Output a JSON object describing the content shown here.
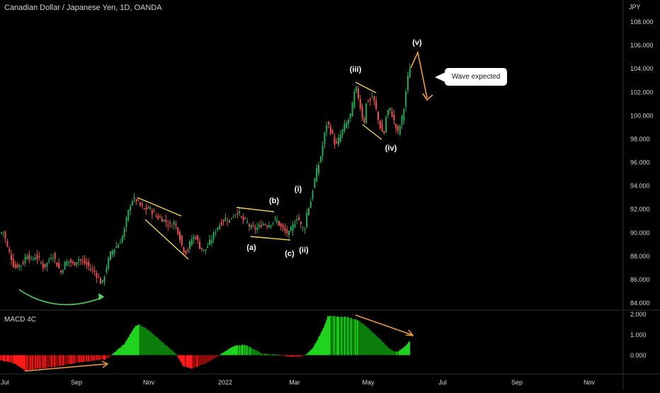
{
  "header": {
    "title": "Canadian Dollar / Japanese Yen, 1D, OANDA"
  },
  "price_axis": {
    "unit": "JPY"
  },
  "indicator": {
    "name": "MACD 4C"
  },
  "callout": {
    "text": "Wave expected"
  },
  "colors": {
    "up": "#22ab5c",
    "down": "#ef5350",
    "annotation_orange": "#f39c3c",
    "channel_yellow": "#f5d547",
    "curve_green": "#4cd964",
    "hist_bright_green": "#1fd31f",
    "hist_dark_green": "#0a7d0a",
    "hist_bright_red": "#ff1a1a",
    "hist_dark_red": "#8a0b0b",
    "background": "#000000",
    "text": "#d1d4dc"
  },
  "chart_data": [
    {
      "type": "candlestick",
      "title": "Canadian Dollar / Japanese Yen, 1D, OANDA",
      "ylabel": "JPY",
      "ylim": [
        83.5,
        109.5
      ],
      "grid": false,
      "x_ticks": [
        "Jul",
        "Sep",
        "Nov",
        "2022",
        "Mar",
        "May",
        "Jul",
        "Sep",
        "Nov"
      ],
      "y_ticks": [
        "84.000",
        "86.000",
        "88.000",
        "90.000",
        "92.000",
        "94.000",
        "96.000",
        "98.000",
        "100.000",
        "102.000",
        "104.000",
        "106.000",
        "108.000"
      ],
      "price_path": [
        [
          0,
          89.9
        ],
        [
          5,
          90.1
        ],
        [
          10,
          88.8
        ],
        [
          15,
          88.0
        ],
        [
          20,
          87.0
        ],
        [
          26,
          87.2
        ],
        [
          32,
          87.3
        ],
        [
          38,
          88.2
        ],
        [
          44,
          87.6
        ],
        [
          50,
          88.0
        ],
        [
          56,
          87.6
        ],
        [
          62,
          87.0
        ],
        [
          68,
          87.5
        ],
        [
          74,
          88.2
        ],
        [
          80,
          87.3
        ],
        [
          86,
          86.6
        ],
        [
          92,
          87.4
        ],
        [
          98,
          87.6
        ],
        [
          104,
          87.2
        ],
        [
          110,
          87.8
        ],
        [
          116,
          87.5
        ],
        [
          122,
          87.3
        ],
        [
          128,
          86.9
        ],
        [
          134,
          86.6
        ],
        [
          140,
          86.0
        ],
        [
          144,
          85.5
        ],
        [
          150,
          87.0
        ],
        [
          156,
          88.2
        ],
        [
          162,
          88.7
        ],
        [
          168,
          89.0
        ],
        [
          174,
          89.8
        ],
        [
          180,
          91.5
        ],
        [
          186,
          92.8
        ],
        [
          192,
          92.8
        ],
        [
          198,
          92.3
        ],
        [
          204,
          91.9
        ],
        [
          210,
          92.1
        ],
        [
          216,
          91.7
        ],
        [
          222,
          91.3
        ],
        [
          228,
          91.2
        ],
        [
          234,
          90.9
        ],
        [
          240,
          90.6
        ],
        [
          246,
          90.9
        ],
        [
          252,
          90.0
        ],
        [
          258,
          88.6
        ],
        [
          264,
          88.3
        ],
        [
          270,
          89.4
        ],
        [
          276,
          89.7
        ],
        [
          282,
          88.8
        ],
        [
          288,
          88.4
        ],
        [
          294,
          88.9
        ],
        [
          300,
          89.6
        ],
        [
          306,
          90.4
        ],
        [
          312,
          90.8
        ],
        [
          318,
          91.2
        ],
        [
          324,
          91.0
        ],
        [
          330,
          91.5
        ],
        [
          336,
          91.8
        ],
        [
          342,
          91.1
        ],
        [
          348,
          90.9
        ],
        [
          354,
          90.4
        ],
        [
          360,
          90.3
        ],
        [
          366,
          90.5
        ],
        [
          372,
          90.8
        ],
        [
          378,
          90.6
        ],
        [
          384,
          90.9
        ],
        [
          390,
          91.1
        ],
        [
          396,
          90.5
        ],
        [
          402,
          90.1
        ],
        [
          408,
          89.9
        ],
        [
          414,
          90.6
        ],
        [
          420,
          91.4
        ],
        [
          426,
          90.4
        ],
        [
          430,
          90.3
        ],
        [
          434,
          92.0
        ],
        [
          438,
          92.4
        ],
        [
          442,
          93.8
        ],
        [
          446,
          95.0
        ],
        [
          450,
          95.8
        ],
        [
          454,
          96.8
        ],
        [
          458,
          98.3
        ],
        [
          462,
          99.5
        ],
        [
          466,
          98.8
        ],
        [
          470,
          98.2
        ],
        [
          474,
          97.3
        ],
        [
          478,
          97.9
        ],
        [
          482,
          98.5
        ],
        [
          486,
          99.0
        ],
        [
          490,
          99.4
        ],
        [
          494,
          99.8
        ],
        [
          498,
          101.0
        ],
        [
          502,
          102.5
        ],
        [
          506,
          101.6
        ],
        [
          510,
          100.3
        ],
        [
          514,
          99.3
        ],
        [
          518,
          101.4
        ],
        [
          522,
          101.2
        ],
        [
          526,
          101.6
        ],
        [
          530,
          100.8
        ],
        [
          534,
          99.6
        ],
        [
          538,
          98.8
        ],
        [
          542,
          98.3
        ],
        [
          546,
          100.2
        ],
        [
          550,
          100.6
        ],
        [
          554,
          100.0
        ],
        [
          558,
          99.1
        ],
        [
          562,
          98.5
        ],
        [
          566,
          99.4
        ],
        [
          570,
          100.4
        ],
        [
          574,
          102.4
        ],
        [
          578,
          104.0
        ],
        [
          580,
          104.3
        ]
      ],
      "wave_labels": [
        {
          "label": "(a)",
          "x": 355,
          "y": 88.5
        },
        {
          "label": "(b)",
          "x": 387,
          "y": 92.5
        },
        {
          "label": "(c)",
          "x": 409,
          "y": 88.0
        },
        {
          "label": "(i)",
          "x": 421,
          "y": 93.5
        },
        {
          "label": "(ii)",
          "x": 429,
          "y": 88.3
        },
        {
          "label": "(iii)",
          "x": 502,
          "y": 103.7
        },
        {
          "label": "(iv)",
          "x": 552,
          "y": 97.0
        },
        {
          "label": "(v)",
          "x": 589,
          "y": 106.0
        }
      ]
    },
    {
      "type": "bar",
      "title": "MACD 4C",
      "ylim": [
        -1.5,
        2.2
      ],
      "y_ticks": [
        "2.000",
        "1.000",
        "0.000"
      ],
      "histogram_path": [
        [
          0,
          -0.25
        ],
        [
          20,
          -0.4
        ],
        [
          35,
          -0.75
        ],
        [
          55,
          -0.65
        ],
        [
          80,
          -0.55
        ],
        [
          110,
          -0.35
        ],
        [
          135,
          -0.25
        ],
        [
          150,
          -0.2
        ],
        [
          160,
          0.1
        ],
        [
          175,
          0.55
        ],
        [
          190,
          1.4
        ],
        [
          196,
          1.5
        ],
        [
          210,
          1.2
        ],
        [
          230,
          0.6
        ],
        [
          248,
          0.05
        ],
        [
          258,
          -0.55
        ],
        [
          270,
          -0.65
        ],
        [
          290,
          -0.4
        ],
        [
          305,
          -0.1
        ],
        [
          318,
          0.2
        ],
        [
          330,
          0.45
        ],
        [
          345,
          0.5
        ],
        [
          355,
          0.35
        ],
        [
          370,
          0.05
        ],
        [
          390,
          0.02
        ],
        [
          410,
          -0.08
        ],
        [
          425,
          -0.05
        ],
        [
          430,
          0.0
        ],
        [
          440,
          0.3
        ],
        [
          450,
          0.9
        ],
        [
          458,
          1.5
        ],
        [
          462,
          1.9
        ],
        [
          490,
          1.85
        ],
        [
          505,
          1.7
        ],
        [
          520,
          1.3
        ],
        [
          535,
          0.8
        ],
        [
          548,
          0.35
        ],
        [
          558,
          0.15
        ],
        [
          565,
          0.25
        ],
        [
          572,
          0.45
        ],
        [
          578,
          0.7
        ]
      ]
    }
  ]
}
